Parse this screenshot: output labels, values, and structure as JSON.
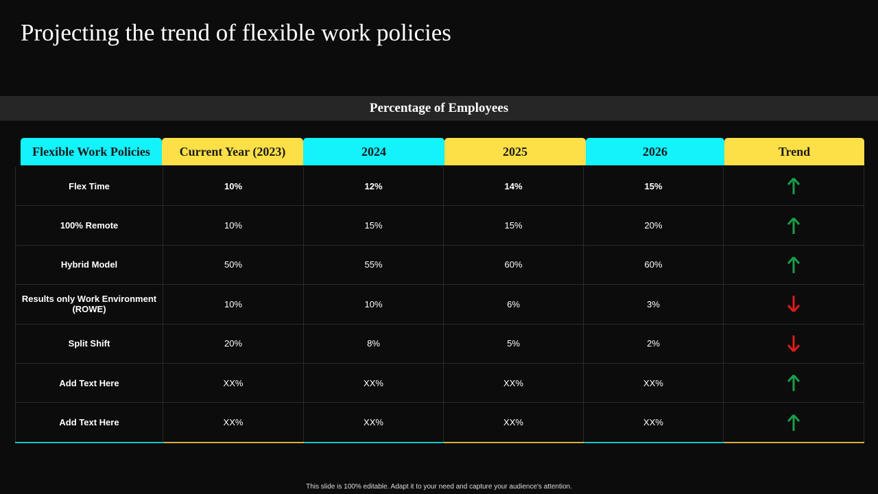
{
  "title": "Projecting the trend of flexible work policies",
  "banner": "Percentage of Employees",
  "table": {
    "header": [
      "Flexible Work Policies",
      "Current Year (2023)",
      "2024",
      "2025",
      "2026",
      "Trend"
    ],
    "rows": [
      [
        "Flex Time",
        "10%",
        "12%",
        "14%",
        "15%"
      ],
      [
        "100% Remote",
        "10%",
        "15%",
        "15%",
        "20%"
      ],
      [
        "Hybrid Model",
        "50%",
        "55%",
        "60%",
        "60%"
      ],
      [
        "Results  only Work Environment (ROWE)",
        "10%",
        "10%",
        "6%",
        "3%"
      ],
      [
        "Split Shift",
        "20%",
        "8%",
        "5%",
        "2%"
      ],
      [
        "Add Text Here",
        "XX%",
        "XX%",
        "XX%",
        "XX%"
      ],
      [
        "Add Text Here",
        "XX%",
        "XX%",
        "XX%",
        "XX%"
      ]
    ]
  },
  "footer": "This slide is 100% editable. Adapt it to your need and capture your audience's attention."
}
